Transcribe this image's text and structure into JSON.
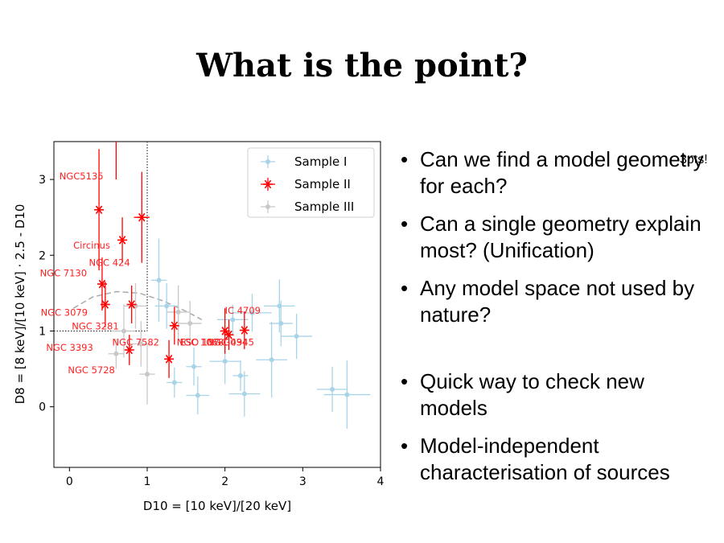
{
  "slide": {
    "title": "What is the point?",
    "badge": "3pts!",
    "bullets_top": [
      "Can we find a model geometry for each?",
      "Can a single geometry explain most? (Unification)",
      "Any model space not used by nature?"
    ],
    "bullets_bottom": [
      "Quick way to check new models",
      "Model-independent characterisation of sources"
    ]
  },
  "chart_data": {
    "type": "scatter",
    "xlabel": "D10 = [10 keV]/[20 keV]",
    "ylabel": "D8 = [8 keV]/[10 keV] · 2.5 - D10",
    "xlim": [
      -0.2,
      4.0
    ],
    "ylim": [
      -0.8,
      3.5
    ],
    "xticks": [
      0,
      1,
      2,
      3,
      4
    ],
    "yticks": [
      0,
      1,
      2,
      3
    ],
    "legend_position": "top-right",
    "reference_lines": {
      "x": 1,
      "y": 1,
      "style": "dotted"
    },
    "colors": {
      "sample1": "#a8d4e8",
      "sample2": "#ff0000",
      "sample3": "#c8c8c8",
      "curve": "#aaaaaa"
    },
    "series": [
      {
        "name": "Sample I",
        "marker": "dot",
        "points": [
          [
            1.15,
            1.67,
            0.1,
            0.55
          ],
          [
            1.25,
            1.33,
            0.15,
            0.3
          ],
          [
            1.35,
            0.32,
            0.1,
            0.2
          ],
          [
            1.6,
            0.53,
            0.1,
            0.25
          ],
          [
            1.65,
            0.15,
            0.15,
            0.25
          ],
          [
            2.0,
            0.6,
            0.2,
            0.3
          ],
          [
            2.1,
            1.15,
            0.2,
            0.2
          ],
          [
            2.2,
            0.41,
            0.1,
            0.2
          ],
          [
            2.25,
            0.17,
            0.2,
            0.3
          ],
          [
            2.35,
            1.24,
            0.25,
            0.25
          ],
          [
            2.6,
            0.62,
            0.2,
            0.5
          ],
          [
            2.7,
            1.33,
            0.2,
            0.35
          ],
          [
            2.72,
            1.1,
            0.15,
            0.3
          ],
          [
            2.92,
            0.93,
            0.2,
            0.3
          ],
          [
            3.38,
            0.23,
            0.2,
            0.3
          ],
          [
            3.57,
            0.16,
            0.3,
            0.45
          ]
        ]
      },
      {
        "name": "Sample II",
        "marker": "asterisk",
        "points": [
          [
            0.38,
            2.6,
            0.0,
            0.8
          ],
          [
            0.6,
            3.6,
            0.0,
            0.6
          ],
          [
            0.68,
            2.2,
            0.0,
            0.3
          ],
          [
            0.93,
            2.5,
            0.1,
            0.6
          ],
          [
            0.42,
            1.62,
            0.0,
            0.35
          ],
          [
            0.46,
            1.35,
            0.0,
            0.3
          ],
          [
            0.8,
            1.35,
            0.0,
            0.25
          ],
          [
            0.77,
            0.75,
            0.0,
            0.2
          ],
          [
            1.28,
            0.63,
            0.0,
            0.25
          ],
          [
            1.35,
            1.07,
            0.0,
            0.25
          ],
          [
            2.0,
            1.0,
            0.0,
            0.3
          ],
          [
            2.05,
            0.95,
            0.0,
            0.2
          ],
          [
            2.25,
            1.01,
            0.0,
            0.25
          ]
        ]
      },
      {
        "name": "Sample III",
        "marker": "dot",
        "points": [
          [
            0.7,
            1.0,
            0.15,
            0.35
          ],
          [
            0.85,
            1.33,
            0.15,
            0.3
          ],
          [
            0.92,
            0.83,
            0.15,
            0.3
          ],
          [
            1.0,
            0.43,
            0.1,
            0.4
          ],
          [
            1.4,
            1.25,
            0.15,
            0.35
          ],
          [
            1.55,
            1.1,
            0.15,
            0.3
          ],
          [
            0.6,
            0.7,
            0.1,
            0.2
          ]
        ]
      }
    ],
    "curve": [
      [
        0.05,
        1.3
      ],
      [
        0.3,
        1.45
      ],
      [
        0.6,
        1.52
      ],
      [
        0.9,
        1.5
      ],
      [
        1.2,
        1.4
      ],
      [
        1.5,
        1.26
      ],
      [
        1.7,
        1.15
      ]
    ],
    "annotations": [
      {
        "text": "NGC5135",
        "x": -0.13,
        "y": 3.0
      },
      {
        "text": "Circinus",
        "x": 0.05,
        "y": 2.09
      },
      {
        "text": "NGC 424",
        "x": 0.25,
        "y": 1.86
      },
      {
        "text": "NGC 7130",
        "x": -0.38,
        "y": 1.72
      },
      {
        "text": "NGC 3079",
        "x": -0.37,
        "y": 1.2
      },
      {
        "text": "NGC 3281",
        "x": 0.03,
        "y": 1.02
      },
      {
        "text": "NGC 3393",
        "x": -0.3,
        "y": 0.74
      },
      {
        "text": "NGC 7582",
        "x": 0.55,
        "y": 0.81
      },
      {
        "text": "NGC 5728",
        "x": -0.02,
        "y": 0.44
      },
      {
        "text": "IC 4709",
        "x": 2.0,
        "y": 1.23
      },
      {
        "text": "ESO 137-G034",
        "x": 1.42,
        "y": 0.81
      },
      {
        "text": "NGC 4945",
        "x": 1.77,
        "y": 0.81
      },
      {
        "text": "NGC 1068",
        "x": 1.38,
        "y": 0.81
      }
    ]
  }
}
